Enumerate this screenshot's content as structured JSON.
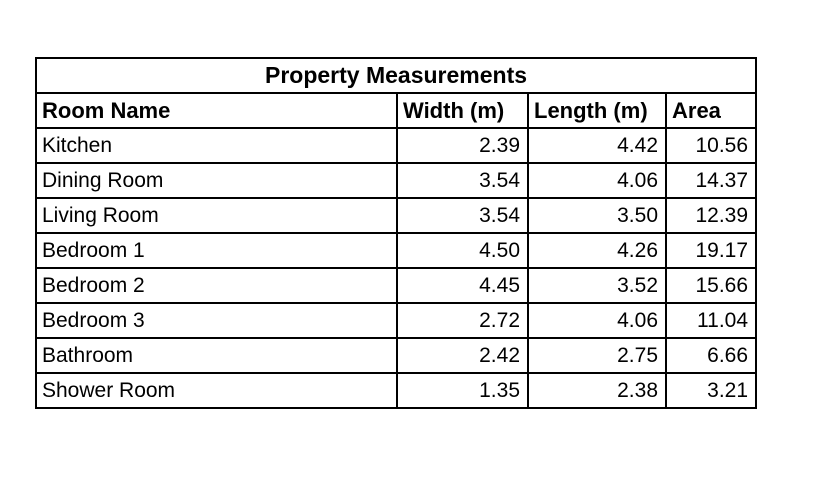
{
  "table": {
    "title": "Property Measurements",
    "columns": [
      "Room Name",
      "Width (m)",
      "Length (m)",
      "Area"
    ],
    "rows": [
      [
        "Kitchen",
        "2.39",
        "4.42",
        "10.56"
      ],
      [
        "Dining Room",
        "3.54",
        "4.06",
        "14.37"
      ],
      [
        "Living Room",
        "3.54",
        "3.50",
        "12.39"
      ],
      [
        "Bedroom 1",
        "4.50",
        "4.26",
        "19.17"
      ],
      [
        "Bedroom 2",
        "4.45",
        "3.52",
        "15.66"
      ],
      [
        "Bedroom 3",
        "2.72",
        "4.06",
        "11.04"
      ],
      [
        "Bathroom",
        "2.42",
        "2.75",
        "6.66"
      ],
      [
        "Shower Room",
        "1.35",
        "2.38",
        "3.21"
      ]
    ],
    "text_color": "#000000",
    "border_color": "#000000",
    "background_color": "#ffffff"
  }
}
